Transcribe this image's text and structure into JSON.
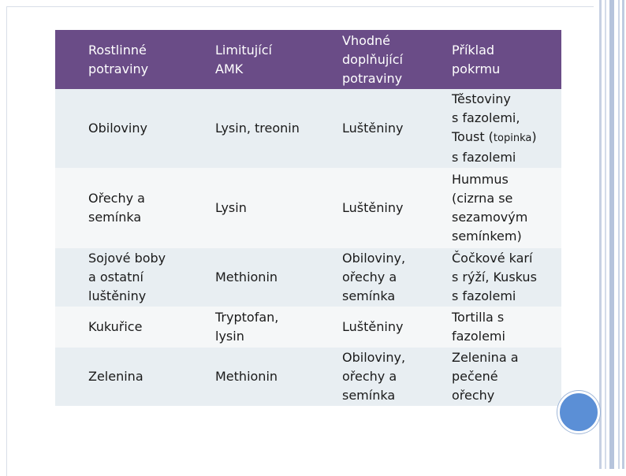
{
  "table": {
    "headers": [
      "Rostlinné\npotraviny",
      "Limitující\nAMK",
      "Vhodné\ndoplňující\npotraviny",
      "Příklad\npokrmu"
    ],
    "rows": [
      {
        "food": "Obiloviny",
        "amk": "Lysin, treonin",
        "complement": "Luštěniny",
        "example_a": "Těstoviny\ns fazolemi,\nToust (",
        "example_note": "topinka",
        "example_b": ")\ns fazolemi"
      },
      {
        "food": "Ořechy a\nsemínka",
        "amk": "Lysin",
        "complement": "Luštěniny",
        "example": "Hummus\n(cizrna se\nsezamovým\nsemínkem)"
      },
      {
        "food": "Sojové boby\na ostatní\nluštěniny",
        "amk": "Methionin",
        "complement": "Obiloviny,\nořechy a\nsemínka",
        "example": "Čočkové karí\ns rýží, Kuskus\ns fazolemi"
      },
      {
        "food": "Kukuřice",
        "amk": "Tryptofan,\nlysin",
        "complement": "Luštěniny",
        "example": "Tortilla s\nfazolemi"
      },
      {
        "food": "Zelenina",
        "amk": "Methionin",
        "complement": "Obiloviny,\nořechy a\nsemínka",
        "example": "Zelenina a\npečené\nořechy"
      }
    ]
  },
  "colors": {
    "header_bg": "#6a4c87",
    "row_dark": "#e8eef2",
    "row_light": "#f5f7f8",
    "accent_circle": "#5b8fd6"
  }
}
